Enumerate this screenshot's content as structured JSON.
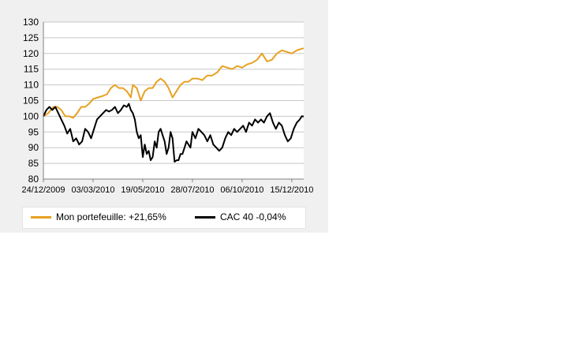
{
  "colors": {
    "portfolio": "#e8a020",
    "index": "#000000",
    "grid": "#c8c8c8",
    "panel": "#f0f0f0",
    "plot_bg": "#ffffff"
  },
  "chart_data": {
    "type": "line",
    "x_ticks": [
      "24/12/2009",
      "03/03/2010",
      "19/05/2010",
      "28/07/2010",
      "06/10/2010",
      "15/12/2010"
    ],
    "x_tick_positions": [
      0,
      50,
      100,
      150,
      200,
      250
    ],
    "xlim": [
      0,
      262
    ],
    "ylim": [
      80,
      130
    ],
    "y_ticks": [
      80,
      85,
      90,
      95,
      100,
      105,
      110,
      115,
      120,
      125,
      130
    ],
    "grid": "horizontal",
    "legend_position": "bottom",
    "series": [
      {
        "name": "Mon portefeuille: +21,65%",
        "color": "#e8a020",
        "x": [
          0,
          5,
          10,
          14,
          18,
          22,
          26,
          30,
          34,
          38,
          42,
          46,
          50,
          55,
          60,
          64,
          68,
          72,
          76,
          80,
          84,
          88,
          90,
          94,
          98,
          102,
          106,
          110,
          114,
          118,
          122,
          126,
          130,
          134,
          138,
          142,
          146,
          150,
          155,
          160,
          165,
          170,
          175,
          180,
          185,
          190,
          195,
          200,
          205,
          210,
          215,
          220,
          225,
          230,
          235,
          240,
          245,
          250,
          255,
          260,
          262
        ],
        "values": [
          100,
          101,
          103,
          103,
          102,
          100,
          100,
          99.5,
          101,
          103,
          103,
          104,
          105.5,
          106,
          106.5,
          107,
          109,
          110,
          109,
          109,
          108,
          106,
          110,
          109,
          105,
          108,
          109,
          109,
          111,
          112,
          111,
          109,
          106,
          108,
          110,
          111,
          111,
          112,
          112,
          111.5,
          113,
          113,
          114,
          116,
          115.5,
          115,
          116,
          115.5,
          116.5,
          117,
          118,
          120,
          117.5,
          118,
          120,
          121,
          120.5,
          120,
          121,
          121.5,
          121.65
        ]
      },
      {
        "name": "CAC 40 -0,04%",
        "color": "#000000",
        "x": [
          0,
          3,
          6,
          9,
          12,
          15,
          18,
          21,
          24,
          27,
          30,
          33,
          36,
          39,
          42,
          45,
          48,
          51,
          54,
          57,
          60,
          63,
          66,
          69,
          72,
          75,
          78,
          81,
          84,
          86,
          88,
          90,
          92,
          94,
          96,
          98,
          100,
          102,
          104,
          106,
          108,
          110,
          112,
          114,
          116,
          118,
          120,
          122,
          124,
          126,
          128,
          130,
          132,
          134,
          136,
          138,
          140,
          142,
          144,
          146,
          148,
          150,
          153,
          156,
          159,
          162,
          165,
          168,
          171,
          174,
          177,
          180,
          183,
          186,
          189,
          192,
          195,
          198,
          201,
          204,
          207,
          210,
          213,
          216,
          219,
          222,
          225,
          228,
          231,
          234,
          237,
          240,
          243,
          246,
          249,
          252,
          255,
          258,
          260,
          262
        ],
        "values": [
          100,
          102,
          103,
          102,
          103,
          101,
          99,
          97,
          94.5,
          96,
          92,
          93,
          91,
          92,
          96,
          95,
          93,
          96,
          99,
          100,
          101,
          102,
          101.5,
          102,
          103,
          101,
          102,
          103.5,
          103,
          104,
          102,
          101,
          99,
          95,
          93,
          94,
          87,
          91,
          88,
          89,
          86,
          87,
          92,
          90,
          95,
          96,
          94,
          92,
          88,
          90,
          95,
          93,
          85.5,
          86,
          86,
          88,
          88,
          90,
          92,
          91,
          90,
          95,
          93,
          96,
          95,
          94,
          92,
          94,
          91,
          90,
          89,
          90,
          93,
          95,
          94,
          96,
          95,
          96,
          97,
          95,
          98,
          97,
          99,
          98,
          99,
          98,
          100,
          101,
          98,
          96,
          98,
          97,
          94,
          92,
          93,
          96,
          98,
          99,
          100,
          99.96
        ]
      }
    ]
  }
}
